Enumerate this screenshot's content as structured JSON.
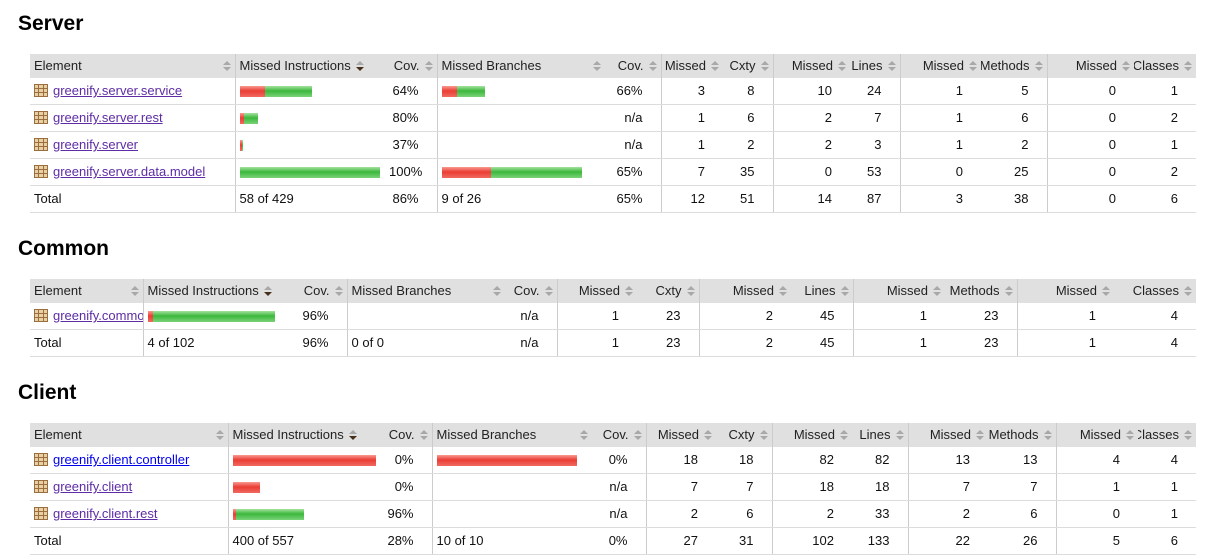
{
  "colors": {
    "unvisited_link": "#0000EE",
    "visited_link": "#5E2CA5",
    "bar_missed_red": "#ea3d34",
    "bar_covered_green": "#3cb83c",
    "header_bg": "#e0e0e0"
  },
  "table": {
    "columns": [
      {
        "label": "Element"
      },
      {
        "label": "Missed Instructions"
      },
      {
        "label": "Cov."
      },
      {
        "label": "Missed Branches"
      },
      {
        "label": "Cov."
      },
      {
        "label": "Missed"
      },
      {
        "label": "Cxty"
      },
      {
        "label": "Missed"
      },
      {
        "label": "Lines"
      },
      {
        "label": "Missed"
      },
      {
        "label": "Methods"
      },
      {
        "label": "Missed"
      },
      {
        "label": "Classes"
      }
    ],
    "sorted_column": "Missed Instructions",
    "sort_direction": "desc"
  },
  "sections": [
    {
      "title": "Server",
      "rows": [
        {
          "element": "greenify.server.service",
          "visited": true,
          "instr_bar": {
            "missed": 25,
            "covered": 47
          },
          "instr_cov": "64%",
          "branch_bar": {
            "missed": 15,
            "covered": 28
          },
          "branch_cov": "66%",
          "counters": [
            "3",
            "8",
            "10",
            "24",
            "1",
            "5",
            "0",
            "1"
          ]
        },
        {
          "element": "greenify.server.rest",
          "visited": true,
          "instr_bar": {
            "missed": 4,
            "covered": 14
          },
          "instr_cov": "80%",
          "branch_bar": null,
          "branch_cov": "n/a",
          "counters": [
            "1",
            "6",
            "2",
            "7",
            "1",
            "6",
            "0",
            "2"
          ]
        },
        {
          "element": "greenify.server",
          "visited": true,
          "instr_bar": {
            "missed": 2,
            "covered": 1
          },
          "instr_cov": "37%",
          "branch_bar": null,
          "branch_cov": "n/a",
          "counters": [
            "1",
            "2",
            "2",
            "3",
            "1",
            "2",
            "0",
            "1"
          ]
        },
        {
          "element": "greenify.server.data.model",
          "visited": true,
          "instr_bar": {
            "missed": 0,
            "covered": 140
          },
          "instr_cov": "100%",
          "branch_bar": {
            "missed": 49,
            "covered": 91
          },
          "branch_cov": "65%",
          "counters": [
            "7",
            "35",
            "0",
            "53",
            "0",
            "25",
            "0",
            "2"
          ]
        }
      ],
      "total": {
        "label": "Total",
        "missed_instructions": "58 of 429",
        "instr_cov": "86%",
        "missed_branches": "9 of 26",
        "branch_cov": "65%",
        "counters": [
          "12",
          "51",
          "14",
          "87",
          "3",
          "38",
          "0",
          "6"
        ]
      }
    },
    {
      "title": "Common",
      "rows": [
        {
          "element": "greenify.common",
          "visited": true,
          "instr_bar": {
            "missed": 5,
            "covered": 122
          },
          "instr_cov": "96%",
          "branch_bar": null,
          "branch_cov": "n/a",
          "counters": [
            "1",
            "23",
            "2",
            "45",
            "1",
            "23",
            "1",
            "4"
          ]
        }
      ],
      "total": {
        "label": "Total",
        "missed_instructions": "4 of 102",
        "instr_cov": "96%",
        "missed_branches": "0 of 0",
        "branch_cov": "n/a",
        "counters": [
          "1",
          "23",
          "2",
          "45",
          "1",
          "23",
          "1",
          "4"
        ]
      }
    },
    {
      "title": "Client",
      "rows": [
        {
          "element": "greenify.client.controller",
          "visited": false,
          "instr_bar": {
            "missed": 146,
            "covered": 0
          },
          "instr_cov": "0%",
          "branch_bar": {
            "missed": 140,
            "covered": 0
          },
          "branch_cov": "0%",
          "counters": [
            "18",
            "18",
            "82",
            "82",
            "13",
            "13",
            "4",
            "4"
          ]
        },
        {
          "element": "greenify.client",
          "visited": true,
          "instr_bar": {
            "missed": 27,
            "covered": 0
          },
          "instr_cov": "0%",
          "branch_bar": null,
          "branch_cov": "n/a",
          "counters": [
            "7",
            "7",
            "18",
            "18",
            "7",
            "7",
            "1",
            "1"
          ]
        },
        {
          "element": "greenify.client.rest",
          "visited": true,
          "instr_bar": {
            "missed": 3,
            "covered": 68
          },
          "instr_cov": "96%",
          "branch_bar": null,
          "branch_cov": "n/a",
          "counters": [
            "2",
            "6",
            "2",
            "33",
            "2",
            "6",
            "0",
            "1"
          ]
        }
      ],
      "total": {
        "label": "Total",
        "missed_instructions": "400 of 557",
        "instr_cov": "28%",
        "missed_branches": "10 of 10",
        "branch_cov": "0%",
        "counters": [
          "27",
          "31",
          "102",
          "133",
          "22",
          "26",
          "5",
          "6"
        ]
      }
    }
  ]
}
